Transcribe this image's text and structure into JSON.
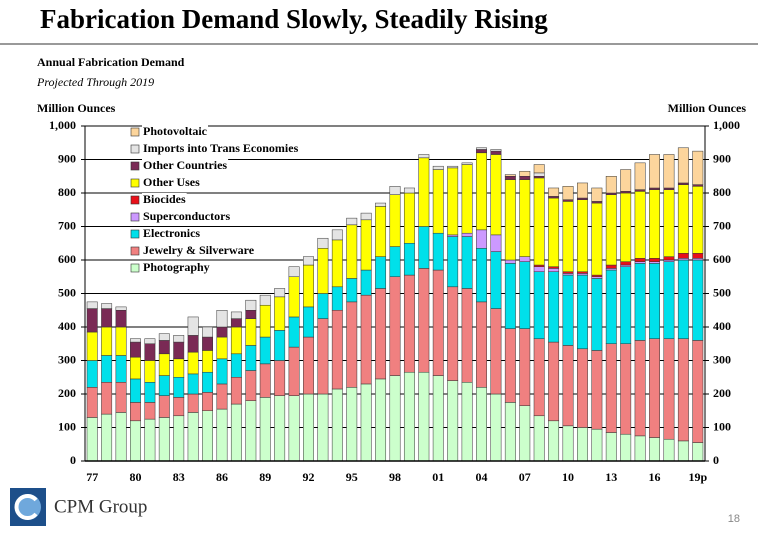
{
  "chart_data": {
    "type": "stacked-bar",
    "title": "Fabrication Demand Slowly, Steadily Rising",
    "subtitle": "Annual Fabrication Demand",
    "note": "Projected Through 2019",
    "y_label": "Million Ounces",
    "y2_label": "Million Ounces",
    "categories": [
      "77",
      null,
      null,
      "80",
      null,
      null,
      "83",
      null,
      null,
      "86",
      null,
      null,
      "89",
      null,
      null,
      "92",
      null,
      null,
      "95",
      null,
      null,
      "98",
      null,
      null,
      "01",
      null,
      null,
      "04",
      null,
      null,
      "07",
      null,
      null,
      "10",
      null,
      null,
      "13",
      null,
      null,
      "16",
      null,
      null,
      "19p"
    ],
    "series": [
      {
        "name": "Photography",
        "color": "#ccffcc",
        "values": [
          130,
          140,
          145,
          120,
          125,
          130,
          135,
          145,
          150,
          155,
          170,
          180,
          190,
          195,
          195,
          200,
          200,
          215,
          220,
          230,
          245,
          255,
          265,
          265,
          255,
          240,
          235,
          220,
          200,
          175,
          165,
          135,
          120,
          105,
          100,
          95,
          85,
          80,
          75,
          70,
          65,
          60,
          55
        ]
      },
      {
        "name": "Jewelry & Silverware",
        "color": "#f08080",
        "values": [
          90,
          95,
          90,
          55,
          50,
          65,
          55,
          55,
          55,
          75,
          80,
          90,
          100,
          105,
          145,
          170,
          225,
          235,
          255,
          265,
          270,
          295,
          290,
          310,
          315,
          280,
          280,
          255,
          255,
          220,
          230,
          230,
          235,
          240,
          235,
          235,
          265,
          270,
          285,
          295,
          300,
          305,
          305
        ]
      },
      {
        "name": "Electronics",
        "color": "#00e0ea",
        "values": [
          80,
          80,
          80,
          70,
          60,
          60,
          60,
          60,
          60,
          75,
          70,
          75,
          80,
          90,
          90,
          90,
          75,
          70,
          70,
          75,
          95,
          90,
          95,
          125,
          110,
          150,
          155,
          160,
          170,
          195,
          200,
          200,
          210,
          210,
          220,
          215,
          220,
          230,
          230,
          225,
          230,
          235,
          240
        ]
      },
      {
        "name": "Superconductors",
        "color": "#cc99ff",
        "values": [
          0,
          0,
          0,
          0,
          0,
          0,
          0,
          0,
          0,
          0,
          0,
          0,
          0,
          0,
          0,
          0,
          0,
          0,
          0,
          0,
          0,
          0,
          0,
          0,
          0,
          5,
          10,
          55,
          50,
          10,
          15,
          15,
          10,
          5,
          5,
          5,
          5,
          5,
          5,
          5,
          5,
          5,
          5
        ]
      },
      {
        "name": "Biocides",
        "color": "#e8101a",
        "values": [
          0,
          0,
          0,
          0,
          0,
          0,
          0,
          0,
          0,
          0,
          0,
          0,
          0,
          0,
          0,
          0,
          0,
          0,
          0,
          0,
          0,
          0,
          0,
          0,
          0,
          0,
          0,
          0,
          0,
          0,
          0,
          5,
          5,
          5,
          5,
          5,
          10,
          10,
          10,
          10,
          10,
          15,
          15
        ]
      },
      {
        "name": "Other Uses",
        "color": "#ffff00",
        "values": [
          85,
          85,
          85,
          65,
          65,
          65,
          55,
          65,
          65,
          65,
          80,
          80,
          95,
          100,
          120,
          125,
          135,
          140,
          160,
          150,
          150,
          155,
          150,
          205,
          190,
          200,
          205,
          230,
          240,
          240,
          230,
          260,
          205,
          210,
          215,
          215,
          210,
          205,
          200,
          205,
          200,
          205,
          200
        ]
      },
      {
        "name": "Other Countries",
        "color": "#7a2a55",
        "values": [
          70,
          55,
          50,
          45,
          50,
          40,
          50,
          50,
          40,
          30,
          25,
          25,
          0,
          0,
          0,
          0,
          0,
          0,
          0,
          0,
          0,
          0,
          0,
          0,
          0,
          0,
          0,
          10,
          10,
          10,
          10,
          5,
          5,
          5,
          5,
          5,
          5,
          5,
          5,
          5,
          5,
          5,
          5
        ]
      },
      {
        "name": "Imports into Trans Economies",
        "color": "#e4e4e4",
        "values": [
          20,
          15,
          10,
          10,
          15,
          20,
          20,
          55,
          30,
          50,
          20,
          30,
          30,
          25,
          30,
          25,
          30,
          30,
          20,
          20,
          10,
          25,
          15,
          10,
          10,
          5,
          5,
          5,
          5,
          0,
          0,
          10,
          0,
          0,
          0,
          0,
          0,
          0,
          0,
          0,
          0,
          0,
          0
        ]
      },
      {
        "name": "Photovoltaic",
        "color": "#fcd59c",
        "values": [
          0,
          0,
          0,
          0,
          0,
          0,
          0,
          0,
          0,
          0,
          0,
          0,
          0,
          0,
          0,
          0,
          0,
          0,
          0,
          0,
          0,
          0,
          0,
          0,
          0,
          0,
          0,
          0,
          0,
          5,
          15,
          25,
          25,
          40,
          45,
          40,
          50,
          65,
          80,
          100,
          100,
          105,
          100
        ]
      }
    ],
    "ylim": [
      0,
      1000
    ],
    "yticks": [
      0,
      100,
      200,
      300,
      400,
      500,
      600,
      700,
      800,
      900,
      {
        "value": 1000,
        "label": "1,000"
      }
    ],
    "y2lim": [
      0,
      1000
    ],
    "y2ticks": [
      0,
      100,
      200,
      300,
      400,
      500,
      600,
      700,
      800,
      900,
      {
        "value": 1000,
        "label": "1,000"
      }
    ],
    "grid": true,
    "legend": "top-left"
  },
  "footer": {
    "brand": "CPM Group",
    "page": 18
  }
}
